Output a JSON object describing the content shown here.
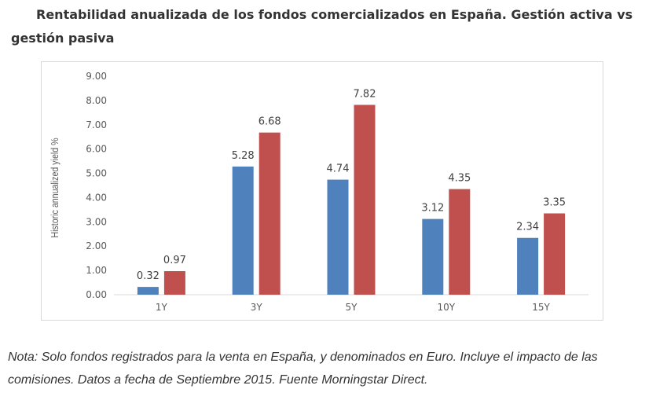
{
  "header": {
    "title": "Rentabilidad anualizada de los fondos comercializados en España. Gestión activa vs gestión pasiva"
  },
  "chart_data": {
    "type": "bar",
    "title": "Rentabilidad anualizada de los fondos comercializados en España. Gestión activa vs gestión pasiva",
    "xlabel": "",
    "ylabel": "Historic annualized yield %",
    "categories": [
      "1Y",
      "3Y",
      "5Y",
      "10Y",
      "15Y"
    ],
    "series": [
      {
        "name": "Series 1",
        "color": "#4f81bd",
        "values": [
          0.32,
          5.28,
          4.74,
          3.12,
          2.34
        ]
      },
      {
        "name": "Series 2",
        "color": "#c0504d",
        "values": [
          0.97,
          6.68,
          7.82,
          4.35,
          3.35
        ]
      }
    ],
    "ylim": [
      0,
      9
    ],
    "yticks": [
      "0.00",
      "1.00",
      "2.00",
      "3.00",
      "4.00",
      "5.00",
      "6.00",
      "7.00",
      "8.00",
      "9.00"
    ],
    "data_labels": [
      [
        "0.32",
        "5.28",
        "4.74",
        "3.12",
        "2.34"
      ],
      [
        "0.97",
        "6.68",
        "7.82",
        "4.35",
        "3.35"
      ]
    ],
    "grid": false,
    "legend": "none"
  },
  "footer": {
    "note": "Nota: Solo fondos registrados para la venta en España, y denominados en Euro. Incluye el impacto de las comisiones. Datos a fecha de Septiembre 2015. Fuente Morningstar Direct."
  }
}
